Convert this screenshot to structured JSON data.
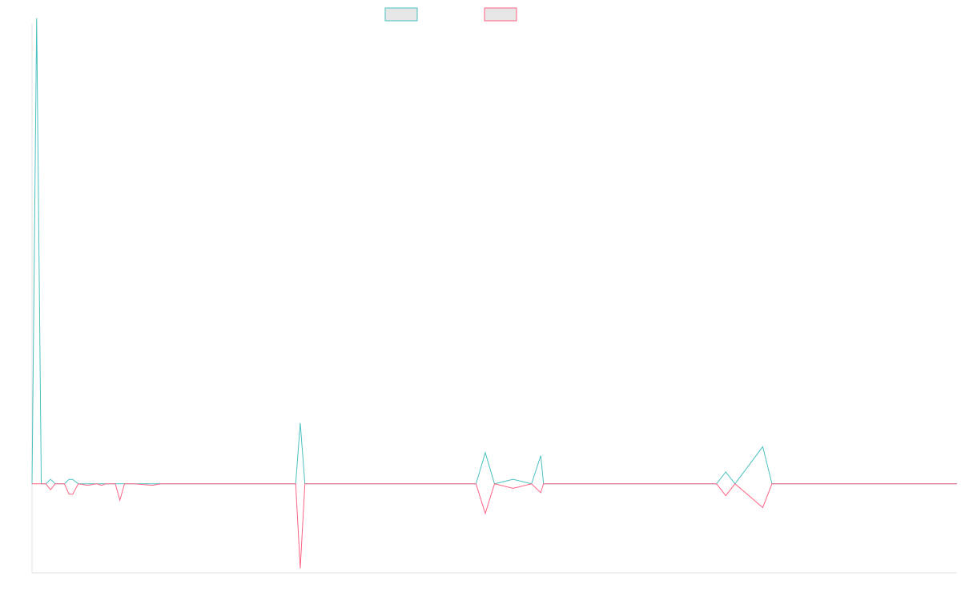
{
  "chart_data": {
    "type": "line",
    "title": "",
    "xlabel": "",
    "ylabel": "",
    "legend_position": "top-center",
    "grid": false,
    "xlim": [
      0,
      100
    ],
    "ylim": [
      -0.3,
      1.55
    ],
    "x": [
      0,
      0.5,
      1,
      1.5,
      2,
      2.5,
      2.9,
      3.5,
      4,
      4.4,
      5,
      6,
      7,
      7.5,
      8,
      9,
      9.5,
      10,
      11,
      13,
      14,
      16,
      18,
      19,
      20,
      23,
      27,
      28.5,
      29,
      29.5,
      32,
      39,
      45,
      48,
      49,
      50,
      52,
      54,
      55,
      55.3,
      55.7,
      56,
      60,
      70,
      74,
      75,
      76,
      79,
      80,
      90,
      100
    ],
    "series": [
      {
        "name": "",
        "color": "#4bc0c0",
        "values": [
          0,
          1.57,
          0,
          0,
          0.015,
          0,
          0,
          0,
          0.015,
          0.015,
          0,
          0,
          0,
          0,
          0,
          0,
          0,
          0,
          0,
          0,
          0,
          0,
          0,
          0,
          0,
          0,
          0,
          0,
          0.205,
          0,
          0,
          0,
          0,
          0,
          0.105,
          0,
          0.015,
          0,
          0.095,
          0,
          0,
          0,
          0,
          0,
          0,
          0.04,
          0,
          0.125,
          0,
          0,
          0
        ]
      },
      {
        "name": "",
        "color": "#ff6384",
        "values": [
          0,
          0,
          0,
          0,
          -0.02,
          0,
          0,
          0,
          -0.035,
          -0.035,
          0,
          -0.005,
          0,
          -0.005,
          0,
          0,
          -0.055,
          0,
          0,
          -0.005,
          0,
          0,
          0,
          0,
          0,
          0,
          0,
          0,
          -0.285,
          0,
          0,
          0,
          0,
          0,
          -0.1,
          0,
          -0.015,
          0,
          -0.03,
          0,
          0,
          0,
          0,
          0,
          0,
          -0.04,
          0,
          -0.08,
          0,
          0,
          0
        ]
      }
    ]
  }
}
